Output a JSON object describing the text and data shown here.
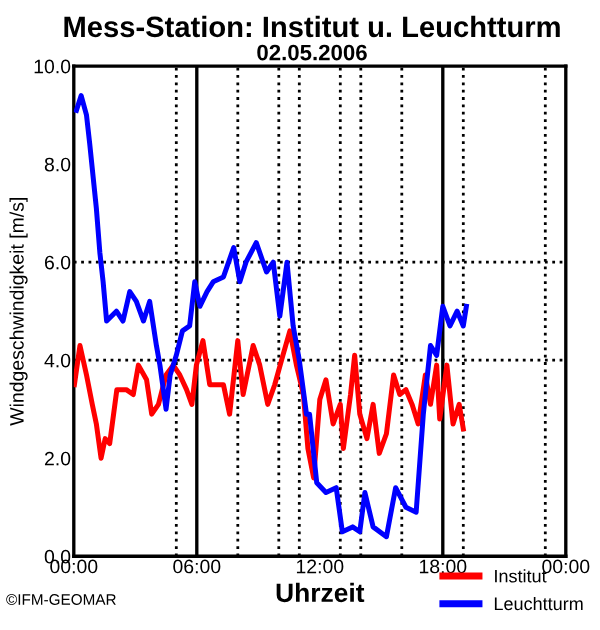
{
  "chart_data": {
    "type": "line",
    "title": "Mess-Station: Institut u. Leuchtturm",
    "subtitle": "02.05.2006",
    "xlabel": "Uhrzeit",
    "ylabel": "Windgeschwindigkeit [m/s]",
    "xlim": [
      0,
      24
    ],
    "xticks": [
      {
        "value": 0,
        "label": "00:00"
      },
      {
        "value": 6,
        "label": "06:00"
      },
      {
        "value": 12,
        "label": "12:00"
      },
      {
        "value": 18,
        "label": "18:00"
      },
      {
        "value": 24,
        "label": "00:00"
      }
    ],
    "ylim": [
      0,
      10
    ],
    "yticks": [
      {
        "value": 0,
        "label": "0.0"
      },
      {
        "value": 2,
        "label": "2.0"
      },
      {
        "value": 4,
        "label": "4.0"
      },
      {
        "value": 6,
        "label": "6.0"
      },
      {
        "value": 8,
        "label": "8.0"
      },
      {
        "value": 10,
        "label": "10.0"
      }
    ],
    "grid": false,
    "legend": "bottom right",
    "marker": "none",
    "line_style": "solid",
    "series": [
      {
        "name": "Institut",
        "color": "#ff0000",
        "x": [
          0.03,
          0.3,
          0.62,
          0.9,
          1.1,
          1.33,
          1.53,
          1.75,
          2.1,
          2.56,
          2.9,
          3.15,
          3.55,
          3.8,
          4.13,
          4.5,
          4.85,
          5.17,
          5.5,
          5.76,
          5.98,
          6.3,
          6.63,
          6.96,
          7.3,
          7.6,
          8.0,
          8.26,
          8.75,
          9.07,
          9.46,
          9.8,
          10.2,
          10.54,
          10.86,
          11.2,
          11.42,
          11.7,
          12.0,
          12.3,
          12.65,
          13.0,
          13.15,
          13.5,
          13.7,
          13.95,
          14.3,
          14.6,
          14.9,
          15.25,
          15.6,
          15.9,
          16.2,
          16.5,
          16.8,
          17.15,
          17.4,
          17.7,
          17.85,
          18.2,
          18.5,
          18.8,
          19.0
        ],
        "values": [
          3.5,
          4.3,
          3.7,
          3.1,
          2.7,
          2.0,
          2.4,
          2.3,
          3.4,
          3.4,
          3.3,
          3.9,
          3.6,
          2.9,
          3.1,
          3.7,
          3.9,
          3.7,
          3.4,
          3.1,
          3.9,
          4.4,
          3.5,
          3.5,
          3.5,
          2.9,
          4.4,
          3.3,
          4.3,
          3.9,
          3.1,
          3.5,
          4.1,
          4.6,
          3.9,
          3.3,
          2.2,
          1.6,
          3.2,
          3.6,
          2.7,
          3.1,
          2.2,
          3.3,
          4.1,
          2.9,
          2.4,
          3.1,
          2.1,
          2.5,
          3.7,
          3.3,
          3.4,
          3.1,
          2.7,
          3.7,
          3.1,
          3.9,
          2.8,
          3.9,
          2.7,
          3.1,
          2.6
        ]
      },
      {
        "name": "Leuchtturm",
        "color": "#0000ff",
        "x": [
          0.13,
          0.36,
          0.62,
          0.78,
          1.1,
          1.27,
          1.43,
          1.6,
          2.08,
          2.4,
          2.73,
          3.05,
          3.4,
          3.7,
          4.03,
          4.2,
          4.5,
          4.7,
          5.0,
          5.3,
          5.65,
          5.9,
          6.15,
          6.5,
          6.8,
          7.3,
          7.8,
          8.1,
          8.4,
          8.9,
          9.4,
          9.73,
          10.05,
          10.4,
          10.7,
          11.0,
          11.35,
          11.5,
          11.85,
          12.3,
          12.8,
          13.1,
          13.6,
          13.95,
          14.2,
          14.6,
          15.25,
          15.7,
          16.2,
          16.7,
          17.05,
          17.4,
          17.7,
          18.0,
          18.35,
          18.7,
          19.0,
          19.15
        ],
        "values": [
          9.1,
          9.4,
          9.0,
          8.4,
          7.1,
          6.2,
          5.6,
          4.8,
          5.0,
          4.8,
          5.4,
          5.2,
          4.8,
          5.2,
          4.3,
          3.9,
          3.0,
          3.7,
          4.1,
          4.6,
          4.7,
          5.6,
          5.1,
          5.4,
          5.6,
          5.7,
          6.3,
          5.6,
          6.0,
          6.4,
          5.8,
          6.0,
          4.9,
          6.0,
          4.7,
          4.0,
          2.9,
          2.9,
          1.5,
          1.3,
          1.4,
          0.5,
          0.6,
          0.5,
          1.3,
          0.6,
          0.4,
          1.4,
          1.0,
          0.9,
          2.9,
          4.3,
          4.1,
          5.1,
          4.7,
          5.0,
          4.7,
          5.1
        ]
      }
    ],
    "ref_lines": [
      {
        "axis": "x",
        "value": 6,
        "color": "#000000",
        "line_style": "solid"
      },
      {
        "axis": "x",
        "value": 18,
        "color": "#000000",
        "line_style": "solid"
      },
      {
        "axis": "x",
        "value": 5,
        "color": "#000000",
        "line_style": "dotted"
      },
      {
        "axis": "x",
        "value": 8,
        "color": "#000000",
        "line_style": "dotted"
      },
      {
        "axis": "x",
        "value": 10,
        "color": "#000000",
        "line_style": "dotted"
      },
      {
        "axis": "x",
        "value": 11,
        "color": "#000000",
        "line_style": "dotted"
      },
      {
        "axis": "x",
        "value": 13,
        "color": "#000000",
        "line_style": "dotted"
      },
      {
        "axis": "x",
        "value": 14,
        "color": "#000000",
        "line_style": "dotted"
      },
      {
        "axis": "x",
        "value": 16,
        "color": "#000000",
        "line_style": "dotted"
      },
      {
        "axis": "x",
        "value": 19,
        "color": "#000000",
        "line_style": "dotted"
      },
      {
        "axis": "x",
        "value": 23,
        "color": "#000000",
        "line_style": "dotted"
      },
      {
        "axis": "y",
        "value": 4,
        "color": "#000000",
        "line_style": "dotted"
      },
      {
        "axis": "y",
        "value": 6,
        "color": "#000000",
        "line_style": "dotted"
      }
    ],
    "annotations": [
      "©IFM-GEOMAR"
    ]
  }
}
